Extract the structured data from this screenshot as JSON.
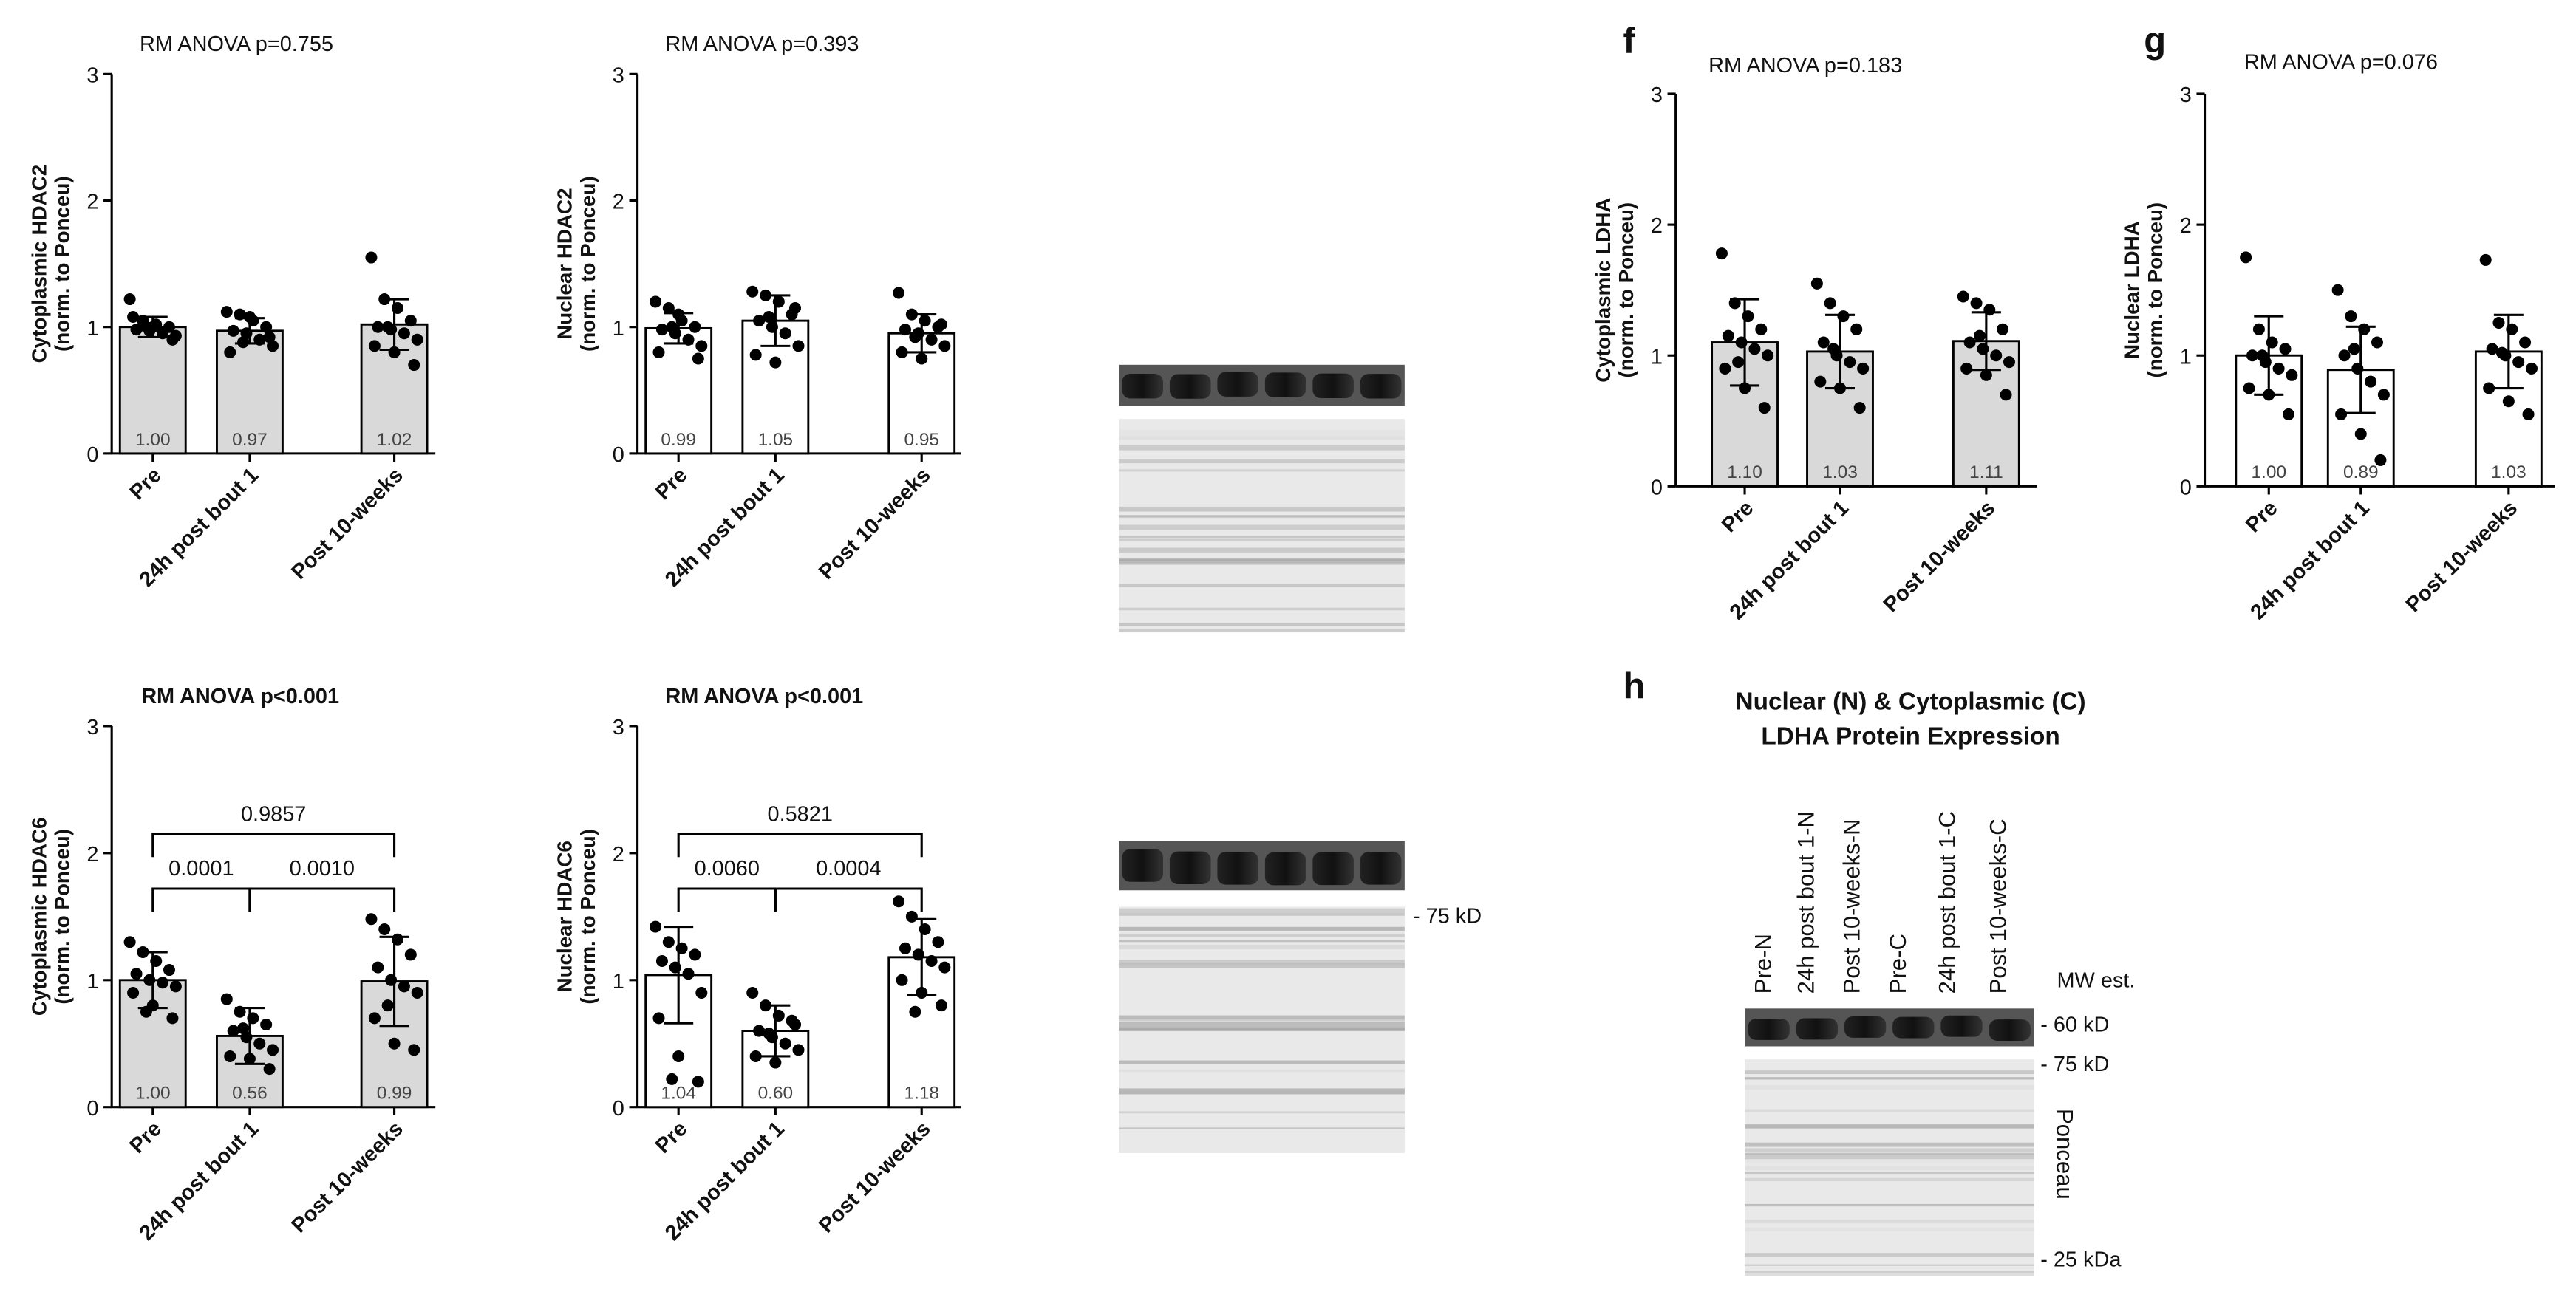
{
  "chart_data": [
    {
      "type": "bar",
      "title": "RM ANOVA p=0.755",
      "ylabel": [
        "Cytoplasmic HDAC2",
        "(norm. to Ponceu)"
      ],
      "categories": [
        "Pre",
        "24h post bout 1",
        "Post 10-weeks"
      ],
      "values": [
        1.0,
        0.97,
        1.02
      ],
      "value_labels": [
        "1.00",
        "0.97",
        "1.02"
      ],
      "errors": [
        0.08,
        0.1,
        0.2
      ],
      "points": [
        [
          1.22,
          1.05,
          1.02,
          1.0,
          0.98,
          0.97,
          0.95,
          0.93,
          1.08,
          1.0,
          0.9,
          1.0
        ],
        [
          1.12,
          1.1,
          1.05,
          1.0,
          0.97,
          0.95,
          0.9,
          0.85,
          0.8,
          1.08,
          0.92,
          0.88
        ],
        [
          1.55,
          1.22,
          1.15,
          1.05,
          1.0,
          0.98,
          0.95,
          0.9,
          0.85,
          0.8,
          0.7,
          1.0
        ]
      ],
      "color": "#d9d9d9",
      "ylim": [
        0,
        3
      ],
      "yticks": [
        0,
        1,
        2,
        3
      ]
    },
    {
      "type": "bar",
      "title": "RM ANOVA p=0.393",
      "ylabel": [
        "Nuclear HDAC2",
        "(norm. to Ponceu)"
      ],
      "categories": [
        "Pre",
        "24h post bout 1",
        "Post 10-weeks"
      ],
      "values": [
        0.99,
        1.05,
        0.95
      ],
      "value_labels": [
        "0.99",
        "1.05",
        "0.95"
      ],
      "errors": [
        0.12,
        0.2,
        0.15
      ],
      "points": [
        [
          1.2,
          1.15,
          1.05,
          1.0,
          0.98,
          0.95,
          0.9,
          0.85,
          0.8,
          1.1,
          0.75,
          1.0
        ],
        [
          1.28,
          1.25,
          1.2,
          1.1,
          1.05,
          1.0,
          0.95,
          0.85,
          0.78,
          0.72,
          1.15,
          1.08
        ],
        [
          1.27,
          1.1,
          1.05,
          1.0,
          0.98,
          0.95,
          0.9,
          0.85,
          0.8,
          0.75,
          1.02,
          0.92
        ]
      ],
      "color": "#ffffff",
      "ylim": [
        0,
        3
      ],
      "yticks": [
        0,
        1,
        2,
        3
      ]
    },
    {
      "type": "bar",
      "title": "RM ANOVA p<0.001",
      "ylabel": [
        "Cytoplasmic HDAC6",
        "(norm. to Ponceu)"
      ],
      "categories": [
        "Pre",
        "24h post bout 1",
        "Post 10-weeks"
      ],
      "values": [
        1.0,
        0.56,
        0.99
      ],
      "value_labels": [
        "1.00",
        "0.56",
        "0.99"
      ],
      "errors": [
        0.22,
        0.22,
        0.35
      ],
      "points": [
        [
          1.3,
          1.22,
          1.15,
          1.08,
          1.05,
          1.0,
          0.98,
          0.95,
          0.9,
          0.8,
          0.7,
          0.75
        ],
        [
          0.85,
          0.75,
          0.7,
          0.65,
          0.6,
          0.55,
          0.5,
          0.45,
          0.4,
          0.38,
          0.3,
          0.62
        ],
        [
          1.48,
          1.4,
          1.32,
          1.2,
          1.1,
          1.0,
          0.95,
          0.9,
          0.7,
          0.5,
          0.45,
          0.8
        ]
      ],
      "color": "#d9d9d9",
      "ylim": [
        0,
        3
      ],
      "yticks": [
        0,
        1,
        2,
        3
      ],
      "annotations": [
        {
          "from": 0,
          "to": 1,
          "y": 1.72,
          "label": "0.0001"
        },
        {
          "from": 1,
          "to": 2,
          "y": 1.72,
          "label": "0.0010"
        },
        {
          "from": 0,
          "to": 2,
          "y": 2.15,
          "label": "0.9857"
        }
      ]
    },
    {
      "type": "bar",
      "title": "RM ANOVA p<0.001",
      "ylabel": [
        "Nuclear HDAC6",
        "(norm. to Ponceu)"
      ],
      "categories": [
        "Pre",
        "24h post bout 1",
        "Post 10-weeks"
      ],
      "values": [
        1.04,
        0.6,
        1.18
      ],
      "value_labels": [
        "1.04",
        "0.60",
        "1.18"
      ],
      "errors": [
        0.38,
        0.2,
        0.3
      ],
      "points": [
        [
          1.42,
          1.3,
          1.25,
          1.2,
          1.15,
          1.1,
          1.05,
          0.9,
          0.7,
          0.4,
          0.2,
          0.22
        ],
        [
          0.9,
          0.8,
          0.72,
          0.68,
          0.6,
          0.55,
          0.5,
          0.45,
          0.4,
          0.35,
          0.65,
          0.58
        ],
        [
          1.62,
          1.5,
          1.4,
          1.3,
          1.25,
          1.2,
          1.15,
          1.1,
          1.0,
          0.9,
          0.8,
          0.75
        ]
      ],
      "color": "#ffffff",
      "ylim": [
        0,
        3
      ],
      "yticks": [
        0,
        1,
        2,
        3
      ],
      "annotations": [
        {
          "from": 0,
          "to": 1,
          "y": 1.72,
          "label": "0.0060"
        },
        {
          "from": 1,
          "to": 2,
          "y": 1.72,
          "label": "0.0004"
        },
        {
          "from": 0,
          "to": 2,
          "y": 2.15,
          "label": "0.5821"
        }
      ]
    },
    {
      "type": "bar",
      "title": "RM ANOVA p=0.183",
      "ylabel": [
        "Cytoplasmic LDHA",
        "(norm. to Ponceu)"
      ],
      "categories": [
        "Pre",
        "24h post bout 1",
        "Post 10-weeks"
      ],
      "values": [
        1.1,
        1.03,
        1.11
      ],
      "value_labels": [
        "1.10",
        "1.03",
        "1.11"
      ],
      "errors": [
        0.33,
        0.28,
        0.22
      ],
      "points": [
        [
          1.78,
          1.4,
          1.3,
          1.2,
          1.15,
          1.1,
          1.05,
          1.0,
          0.9,
          0.75,
          0.6,
          0.95
        ],
        [
          1.55,
          1.4,
          1.3,
          1.2,
          1.1,
          1.0,
          0.95,
          0.9,
          0.8,
          0.75,
          0.6,
          1.05
        ],
        [
          1.45,
          1.4,
          1.35,
          1.2,
          1.1,
          1.05,
          1.0,
          0.95,
          0.9,
          0.85,
          0.7,
          1.15
        ]
      ],
      "color": "#d9d9d9",
      "ylim": [
        0,
        3
      ],
      "yticks": [
        0,
        1,
        2,
        3
      ]
    },
    {
      "type": "bar",
      "title": "RM ANOVA p=0.076",
      "ylabel": [
        "Nuclear LDHA",
        "(norm. to Ponceu)"
      ],
      "categories": [
        "Pre",
        "24h post bout 1",
        "Post 10-weeks"
      ],
      "values": [
        1.0,
        0.89,
        1.03
      ],
      "value_labels": [
        "1.00",
        "0.89",
        "1.03"
      ],
      "errors": [
        0.3,
        0.33,
        0.28
      ],
      "points": [
        [
          1.75,
          1.2,
          1.1,
          1.05,
          1.0,
          0.95,
          0.9,
          0.85,
          0.75,
          0.7,
          0.55,
          1.0
        ],
        [
          1.5,
          1.3,
          1.2,
          1.1,
          1.0,
          0.9,
          0.8,
          0.7,
          0.55,
          0.4,
          0.2,
          1.05
        ],
        [
          1.73,
          1.25,
          1.2,
          1.1,
          1.05,
          1.0,
          0.95,
          0.9,
          0.75,
          0.65,
          0.55,
          1.02
        ]
      ],
      "color": "#ffffff",
      "ylim": [
        0,
        3
      ],
      "yticks": [
        0,
        1,
        2,
        3
      ]
    }
  ],
  "figure": {
    "panel_letters": [
      "f",
      "g",
      "h"
    ],
    "hdac6_marker": "- 75 kD",
    "ldha_blot": {
      "title": [
        "Nuclear (N) & Cytoplasmic (C)",
        "LDHA Protein Expression"
      ],
      "lanes": [
        "Pre-N",
        "24h post bout 1-N",
        "Post 10-weeks-N",
        "Pre-C",
        "24h post bout 1-C",
        "Post 10-weeks-C"
      ],
      "mw_label": "MW est.",
      "markers": [
        "- 60 kD",
        "- 75 kD",
        "- 25 kDa"
      ],
      "ponceau": "Ponceau"
    }
  }
}
